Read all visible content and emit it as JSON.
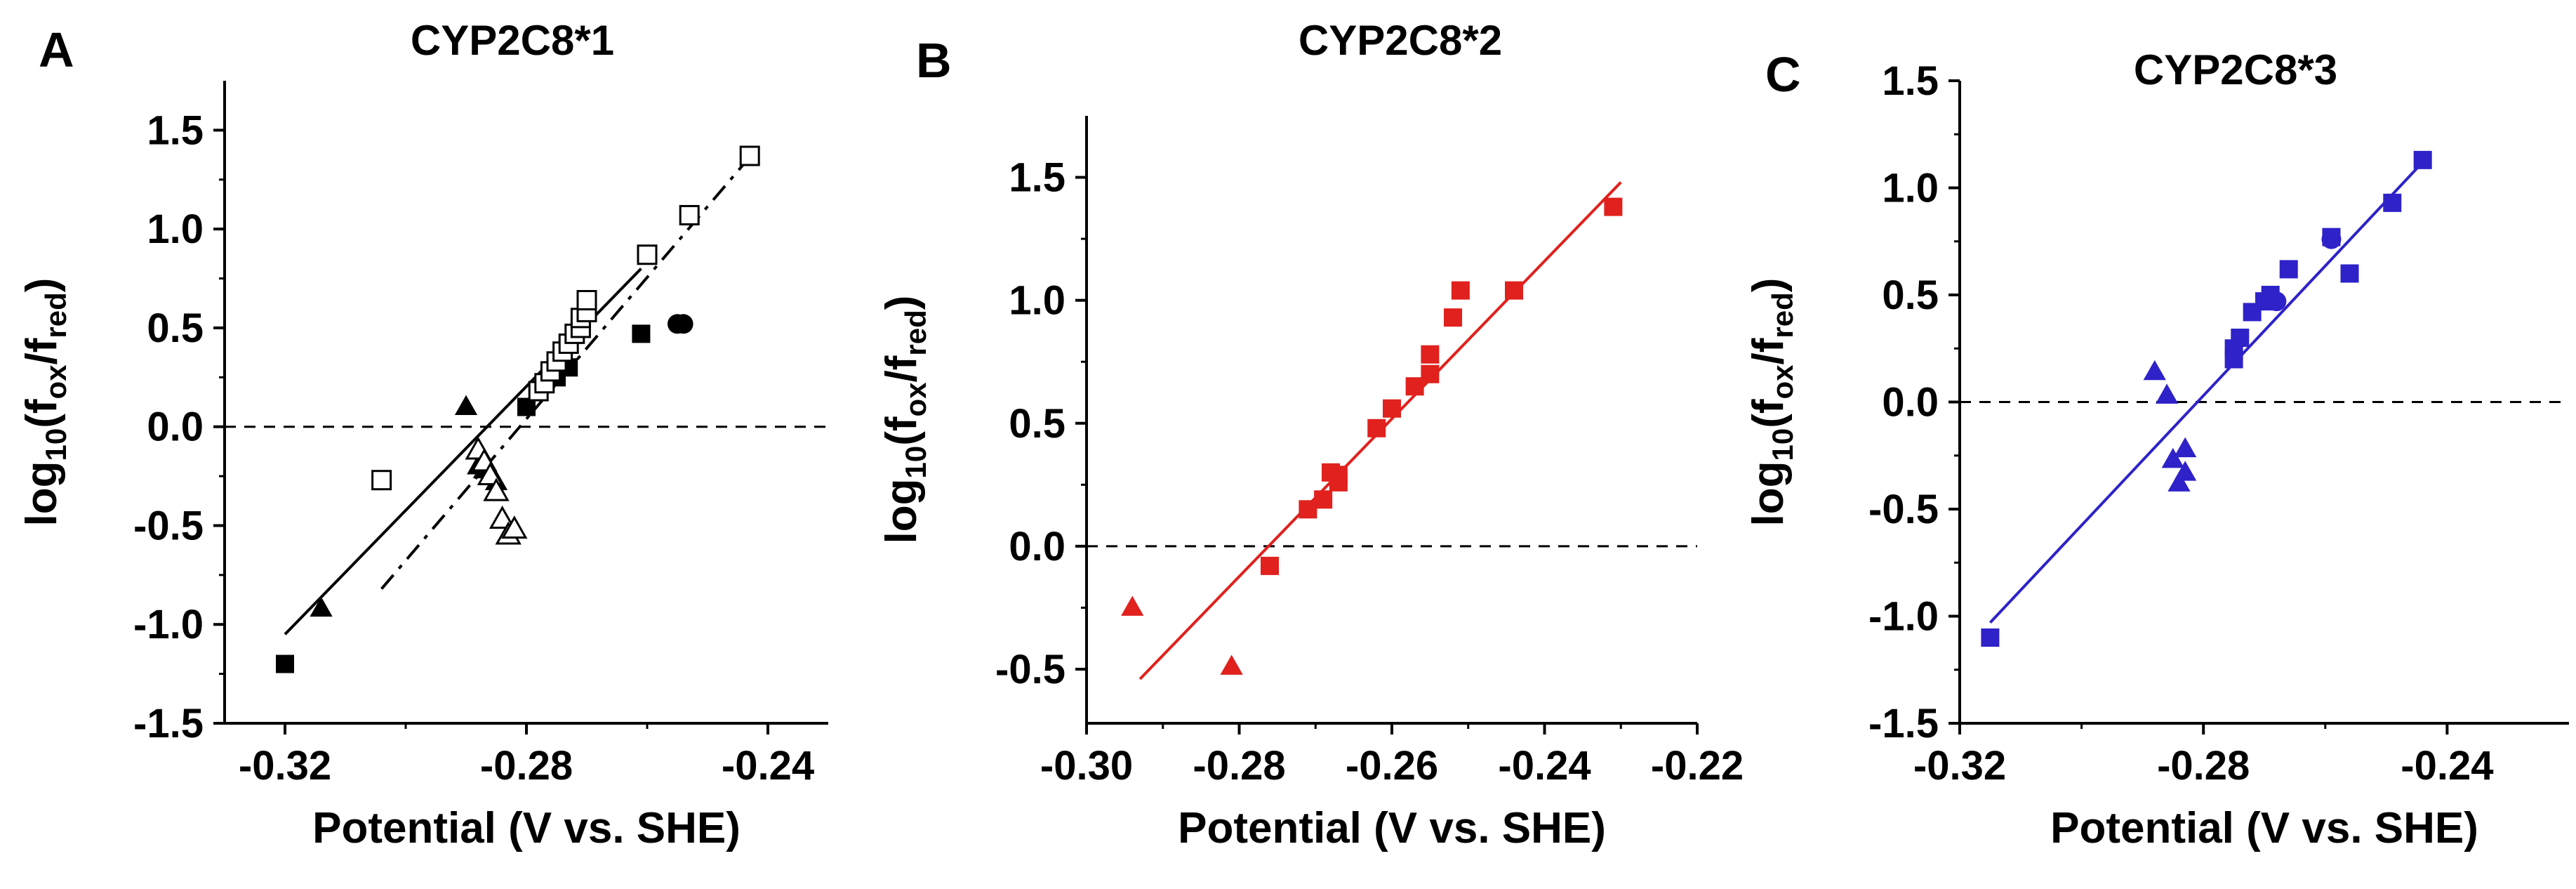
{
  "chart_data": [
    {
      "type": "scatter",
      "panel_letter": "A",
      "title": "CYP2C8*1",
      "xlabel": "Potential (V vs. SHE)",
      "ylabel": {
        "main": "log",
        "sub1": "10",
        "paren": "(f",
        "sub2": "ox",
        "slash": "/f",
        "sub3": "red",
        "close": ")"
      },
      "xlim": [
        -0.33,
        -0.23
      ],
      "ylim": [
        -1.5,
        1.75
      ],
      "xticks": [
        -0.32,
        -0.28,
        -0.24
      ],
      "xtick_labels": [
        "-0.32",
        "-0.28",
        "-0.24"
      ],
      "yticks": [
        -1.5,
        -1.0,
        -0.5,
        0.0,
        0.5,
        1.0,
        1.5
      ],
      "ytick_labels": [
        "-1.5",
        "-1.0",
        "-0.5",
        "0.0",
        "0.5",
        "1.0",
        "1.5"
      ],
      "reference_line_y": 0,
      "series": [
        {
          "name": "filled squares",
          "marker": "square",
          "filled": true,
          "color": "#000000",
          "x": [
            -0.32,
            -0.28,
            -0.275,
            -0.273,
            -0.261
          ],
          "y": [
            -1.2,
            0.1,
            0.25,
            0.3,
            0.47
          ]
        },
        {
          "name": "filled circles",
          "marker": "circle",
          "filled": true,
          "color": "#000000",
          "x": [
            -0.255,
            -0.254
          ],
          "y": [
            0.52,
            0.52
          ]
        },
        {
          "name": "filled triangles",
          "marker": "triangle",
          "filled": true,
          "color": "#000000",
          "x": [
            -0.314,
            -0.29,
            -0.288,
            -0.287,
            -0.286,
            -0.285
          ],
          "y": [
            -0.92,
            0.1,
            -0.2,
            -0.22,
            -0.24,
            -0.28
          ]
        },
        {
          "name": "open squares",
          "marker": "square",
          "filled": false,
          "color": "#000000",
          "x": [
            -0.304,
            -0.278,
            -0.277,
            -0.276,
            -0.275,
            -0.274,
            -0.273,
            -0.272,
            -0.271,
            -0.271,
            -0.27,
            -0.27,
            -0.26,
            -0.253,
            -0.243
          ],
          "y": [
            -0.27,
            0.18,
            0.22,
            0.28,
            0.33,
            0.38,
            0.42,
            0.47,
            0.5,
            0.55,
            0.58,
            0.64,
            0.87,
            1.07,
            1.37
          ]
        },
        {
          "name": "open triangles",
          "marker": "triangle",
          "filled": false,
          "color": "#000000",
          "x": [
            -0.288,
            -0.287,
            -0.286,
            -0.285,
            -0.284,
            -0.283,
            -0.282
          ],
          "y": [
            -0.12,
            -0.18,
            -0.25,
            -0.33,
            -0.47,
            -0.55,
            -0.52
          ]
        }
      ],
      "fits": [
        {
          "name": "solid fit",
          "style": "solid",
          "color": "#000000",
          "x": [
            -0.32,
            -0.261
          ],
          "y": [
            -1.05,
            0.8
          ]
        },
        {
          "name": "dash-dot fit",
          "style": "dashdot",
          "color": "#000000",
          "x": [
            -0.304,
            -0.242
          ],
          "y": [
            -0.82,
            1.4
          ]
        }
      ]
    },
    {
      "type": "scatter",
      "panel_letter": "B",
      "title": "CYP2C8*2",
      "xlabel": "Potential (V vs. SHE)",
      "ylabel": {
        "main": "log",
        "sub1": "10",
        "paren": "(f",
        "sub2": "ox",
        "slash": "/f",
        "sub3": "red",
        "close": ")"
      },
      "xlim": [
        -0.3,
        -0.22
      ],
      "ylim": [
        -0.72,
        1.75
      ],
      "xticks": [
        -0.3,
        -0.28,
        -0.26,
        -0.24,
        -0.22
      ],
      "xtick_labels": [
        "-0.30",
        "-0.28",
        "-0.26",
        "-0.24",
        "-0.22"
      ],
      "yticks": [
        -0.5,
        0.0,
        0.5,
        1.0,
        1.5
      ],
      "ytick_labels": [
        "-0.5",
        "0.0",
        "0.5",
        "1.0",
        "1.5"
      ],
      "reference_line_y": 0,
      "series": [
        {
          "name": "red squares",
          "marker": "square",
          "filled": true,
          "color": "#e0211d",
          "x": [
            -0.276,
            -0.271,
            -0.269,
            -0.268,
            -0.267,
            -0.267,
            -0.262,
            -0.26,
            -0.257,
            -0.255,
            -0.255,
            -0.252,
            -0.251,
            -0.244,
            -0.231
          ],
          "y": [
            -0.08,
            0.15,
            0.19,
            0.3,
            0.29,
            0.26,
            0.48,
            0.56,
            0.65,
            0.7,
            0.78,
            0.93,
            1.04,
            1.04,
            1.38
          ]
        },
        {
          "name": "red triangles",
          "marker": "triangle",
          "filled": true,
          "color": "#e0211d",
          "x": [
            -0.294,
            -0.281
          ],
          "y": [
            -0.25,
            -0.49
          ]
        }
      ],
      "fits": [
        {
          "name": "linear fit",
          "style": "solid",
          "color": "#e0211d",
          "x": [
            -0.293,
            -0.23
          ],
          "y": [
            -0.54,
            1.48
          ]
        }
      ]
    },
    {
      "type": "scatter",
      "panel_letter": "C",
      "title": "CYP2C8*3",
      "xlabel": "Potential (V vs. SHE)",
      "ylabel": {
        "main": "log",
        "sub1": "10",
        "paren": "(f",
        "sub2": "ox",
        "slash": "/f",
        "sub3": "red",
        "close": ")"
      },
      "xlim": [
        -0.32,
        -0.22
      ],
      "ylim": [
        -1.5,
        1.5
      ],
      "xticks": [
        -0.32,
        -0.28,
        -0.24
      ],
      "xtick_labels": [
        "-0.32",
        "-0.28",
        "-0.24"
      ],
      "yticks": [
        -1.5,
        -1.0,
        -0.5,
        0.0,
        0.5,
        1.0,
        1.5
      ],
      "ytick_labels": [
        "-1.5",
        "-1.0",
        "-0.5",
        "0.0",
        "0.5",
        "1.0",
        "1.5"
      ],
      "reference_line_y": 0,
      "series": [
        {
          "name": "blue squares",
          "marker": "square",
          "filled": true,
          "color": "#2e22c8",
          "x": [
            -0.315,
            -0.275,
            -0.275,
            -0.274,
            -0.272,
            -0.27,
            -0.269,
            -0.266,
            -0.259,
            -0.256,
            -0.249,
            -0.244
          ],
          "y": [
            -1.1,
            0.2,
            0.25,
            0.3,
            0.42,
            0.47,
            0.5,
            0.62,
            0.77,
            0.6,
            0.93,
            1.13
          ]
        },
        {
          "name": "blue circles",
          "marker": "circle",
          "filled": true,
          "color": "#2e22c8",
          "x": [
            -0.268,
            -0.259
          ],
          "y": [
            0.47,
            0.76
          ]
        },
        {
          "name": "blue triangles",
          "marker": "triangle",
          "filled": true,
          "color": "#2e22c8",
          "x": [
            -0.288,
            -0.286,
            -0.285,
            -0.284,
            -0.283,
            -0.283
          ],
          "y": [
            0.14,
            0.03,
            -0.27,
            -0.38,
            -0.22,
            -0.33
          ]
        }
      ],
      "fits": [
        {
          "name": "linear fit",
          "style": "solid",
          "color": "#2e22c8",
          "x": [
            -0.315,
            -0.244
          ],
          "y": [
            -1.03,
            1.12
          ]
        }
      ]
    }
  ]
}
